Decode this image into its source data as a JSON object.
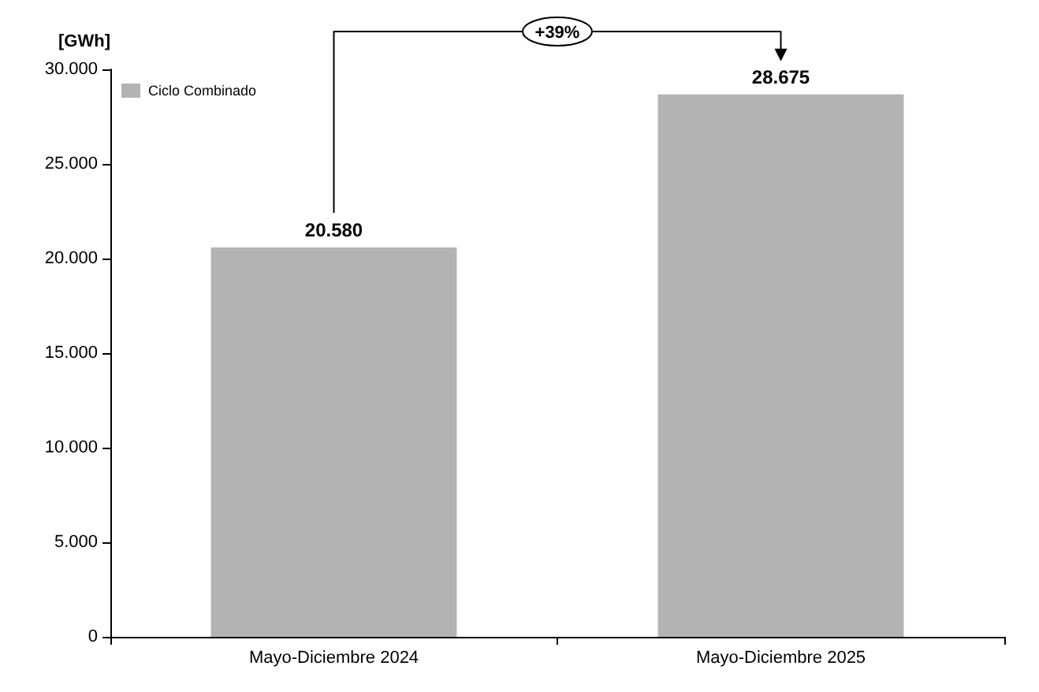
{
  "chart_data": {
    "type": "bar",
    "ylabel": "[GWh]",
    "categories": [
      "Mayo-Diciembre 2024",
      "Mayo-Diciembre 2025"
    ],
    "series": [
      {
        "name": "Ciclo Combinado",
        "color": "#b3b3b3",
        "values": [
          20580,
          28675
        ],
        "value_labels": [
          "20.580",
          "28.675"
        ]
      }
    ],
    "ylim": [
      0,
      30000
    ],
    "yticks": [
      {
        "value": 0,
        "label": "0"
      },
      {
        "value": 5000,
        "label": "5.000"
      },
      {
        "value": 10000,
        "label": "10.000"
      },
      {
        "value": 15000,
        "label": "15.000"
      },
      {
        "value": 20000,
        "label": "20.000"
      },
      {
        "value": 25000,
        "label": "25.000"
      },
      {
        "value": 30000,
        "label": "30.000"
      }
    ],
    "annotations": [
      "+39%"
    ],
    "legend": "top left",
    "grid": false
  }
}
